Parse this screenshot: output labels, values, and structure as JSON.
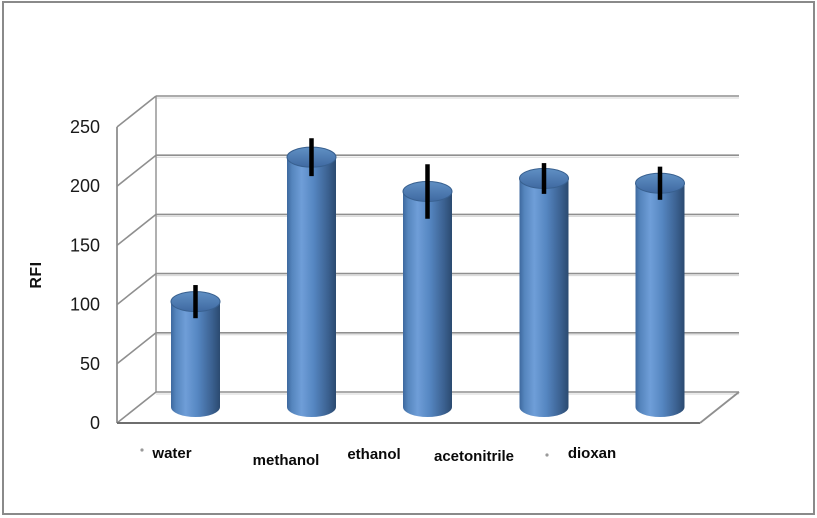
{
  "frame": {
    "border_color": "#8a8a8a",
    "background": "#ffffff"
  },
  "chart_data": {
    "type": "bar",
    "subtype": "3d-cylinder-with-error-bars",
    "title": "",
    "xlabel": "",
    "ylabel": "RFI",
    "categories": [
      "water",
      "methanol",
      "ethanol",
      "acetonitrile",
      "dioxan"
    ],
    "values": [
      89,
      211,
      182,
      193,
      189
    ],
    "errors": [
      14,
      16,
      23,
      13,
      14
    ],
    "ylim": [
      0,
      250
    ],
    "yticks": [
      0,
      50,
      100,
      150,
      200,
      250
    ],
    "grid": true,
    "legend": false,
    "colors": {
      "bar_main": "#4f81bd",
      "bar_light": "#6f9ed8",
      "bar_dark": "#2b4a70",
      "bar_top": "#4a77ad",
      "error_bar": "#000000",
      "gridline": "#8f8f8f",
      "gridline_shadow": "#d6d6d6",
      "axis": "#8f8f8f",
      "floor_front_edge": "#6e6e6e",
      "tick_text": "#1a1a1a",
      "category_text": "#0a0a0a"
    }
  }
}
